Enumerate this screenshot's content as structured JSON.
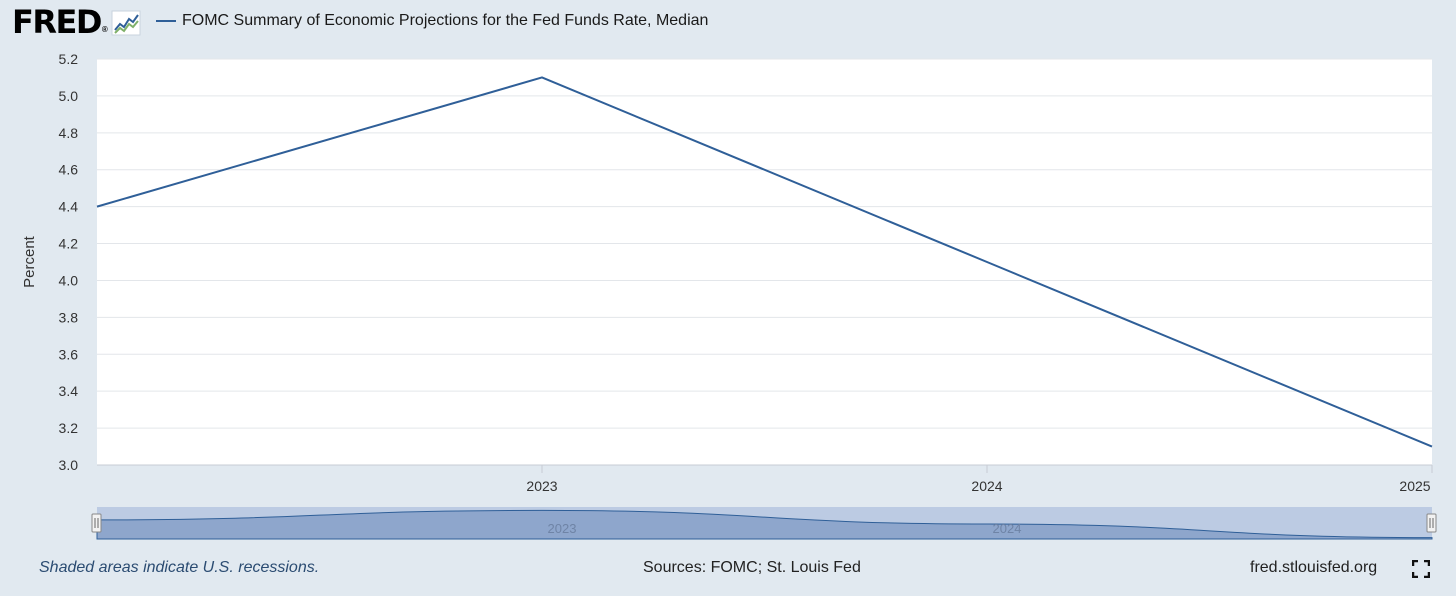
{
  "header": {
    "logo_text": "FRED",
    "logo_reg": "®",
    "series_name": "FOMC Summary of Economic Projections for the Fed Funds Rate, Median"
  },
  "footer": {
    "left": "Shaded areas indicate U.S. recessions.",
    "center": "Sources: FOMC; St. Louis Fed",
    "right": "fred.stlouisfed.org"
  },
  "icons": {
    "logo": "fred-graph-icon",
    "fullscreen": "fullscreen-icon"
  },
  "colors": {
    "line": "#2f5f98",
    "background": "#e1e9f0",
    "plot_background": "#ffffff",
    "navigator_fill": "#8ea6cc",
    "navigator_window": "#bccbe3"
  },
  "chart_data": {
    "type": "line",
    "title": "",
    "ylabel": "Percent",
    "xlabel": "",
    "ylim": [
      3.0,
      5.2
    ],
    "yticks": [
      3.0,
      3.2,
      3.4,
      3.6,
      3.8,
      4.0,
      4.2,
      4.4,
      4.6,
      4.8,
      5.0,
      5.2
    ],
    "xlim": [
      2022,
      2025
    ],
    "xticks": [
      2023,
      2024,
      2025
    ],
    "grid": true,
    "legend": "top-left",
    "series": [
      {
        "name": "FOMC Summary of Economic Projections for the Fed Funds Rate, Median",
        "x": [
          2022,
          2023,
          2024,
          2025
        ],
        "values": [
          4.4,
          5.1,
          4.1,
          3.1
        ]
      }
    ],
    "navigator_labels": [
      "2023",
      "2024"
    ]
  }
}
